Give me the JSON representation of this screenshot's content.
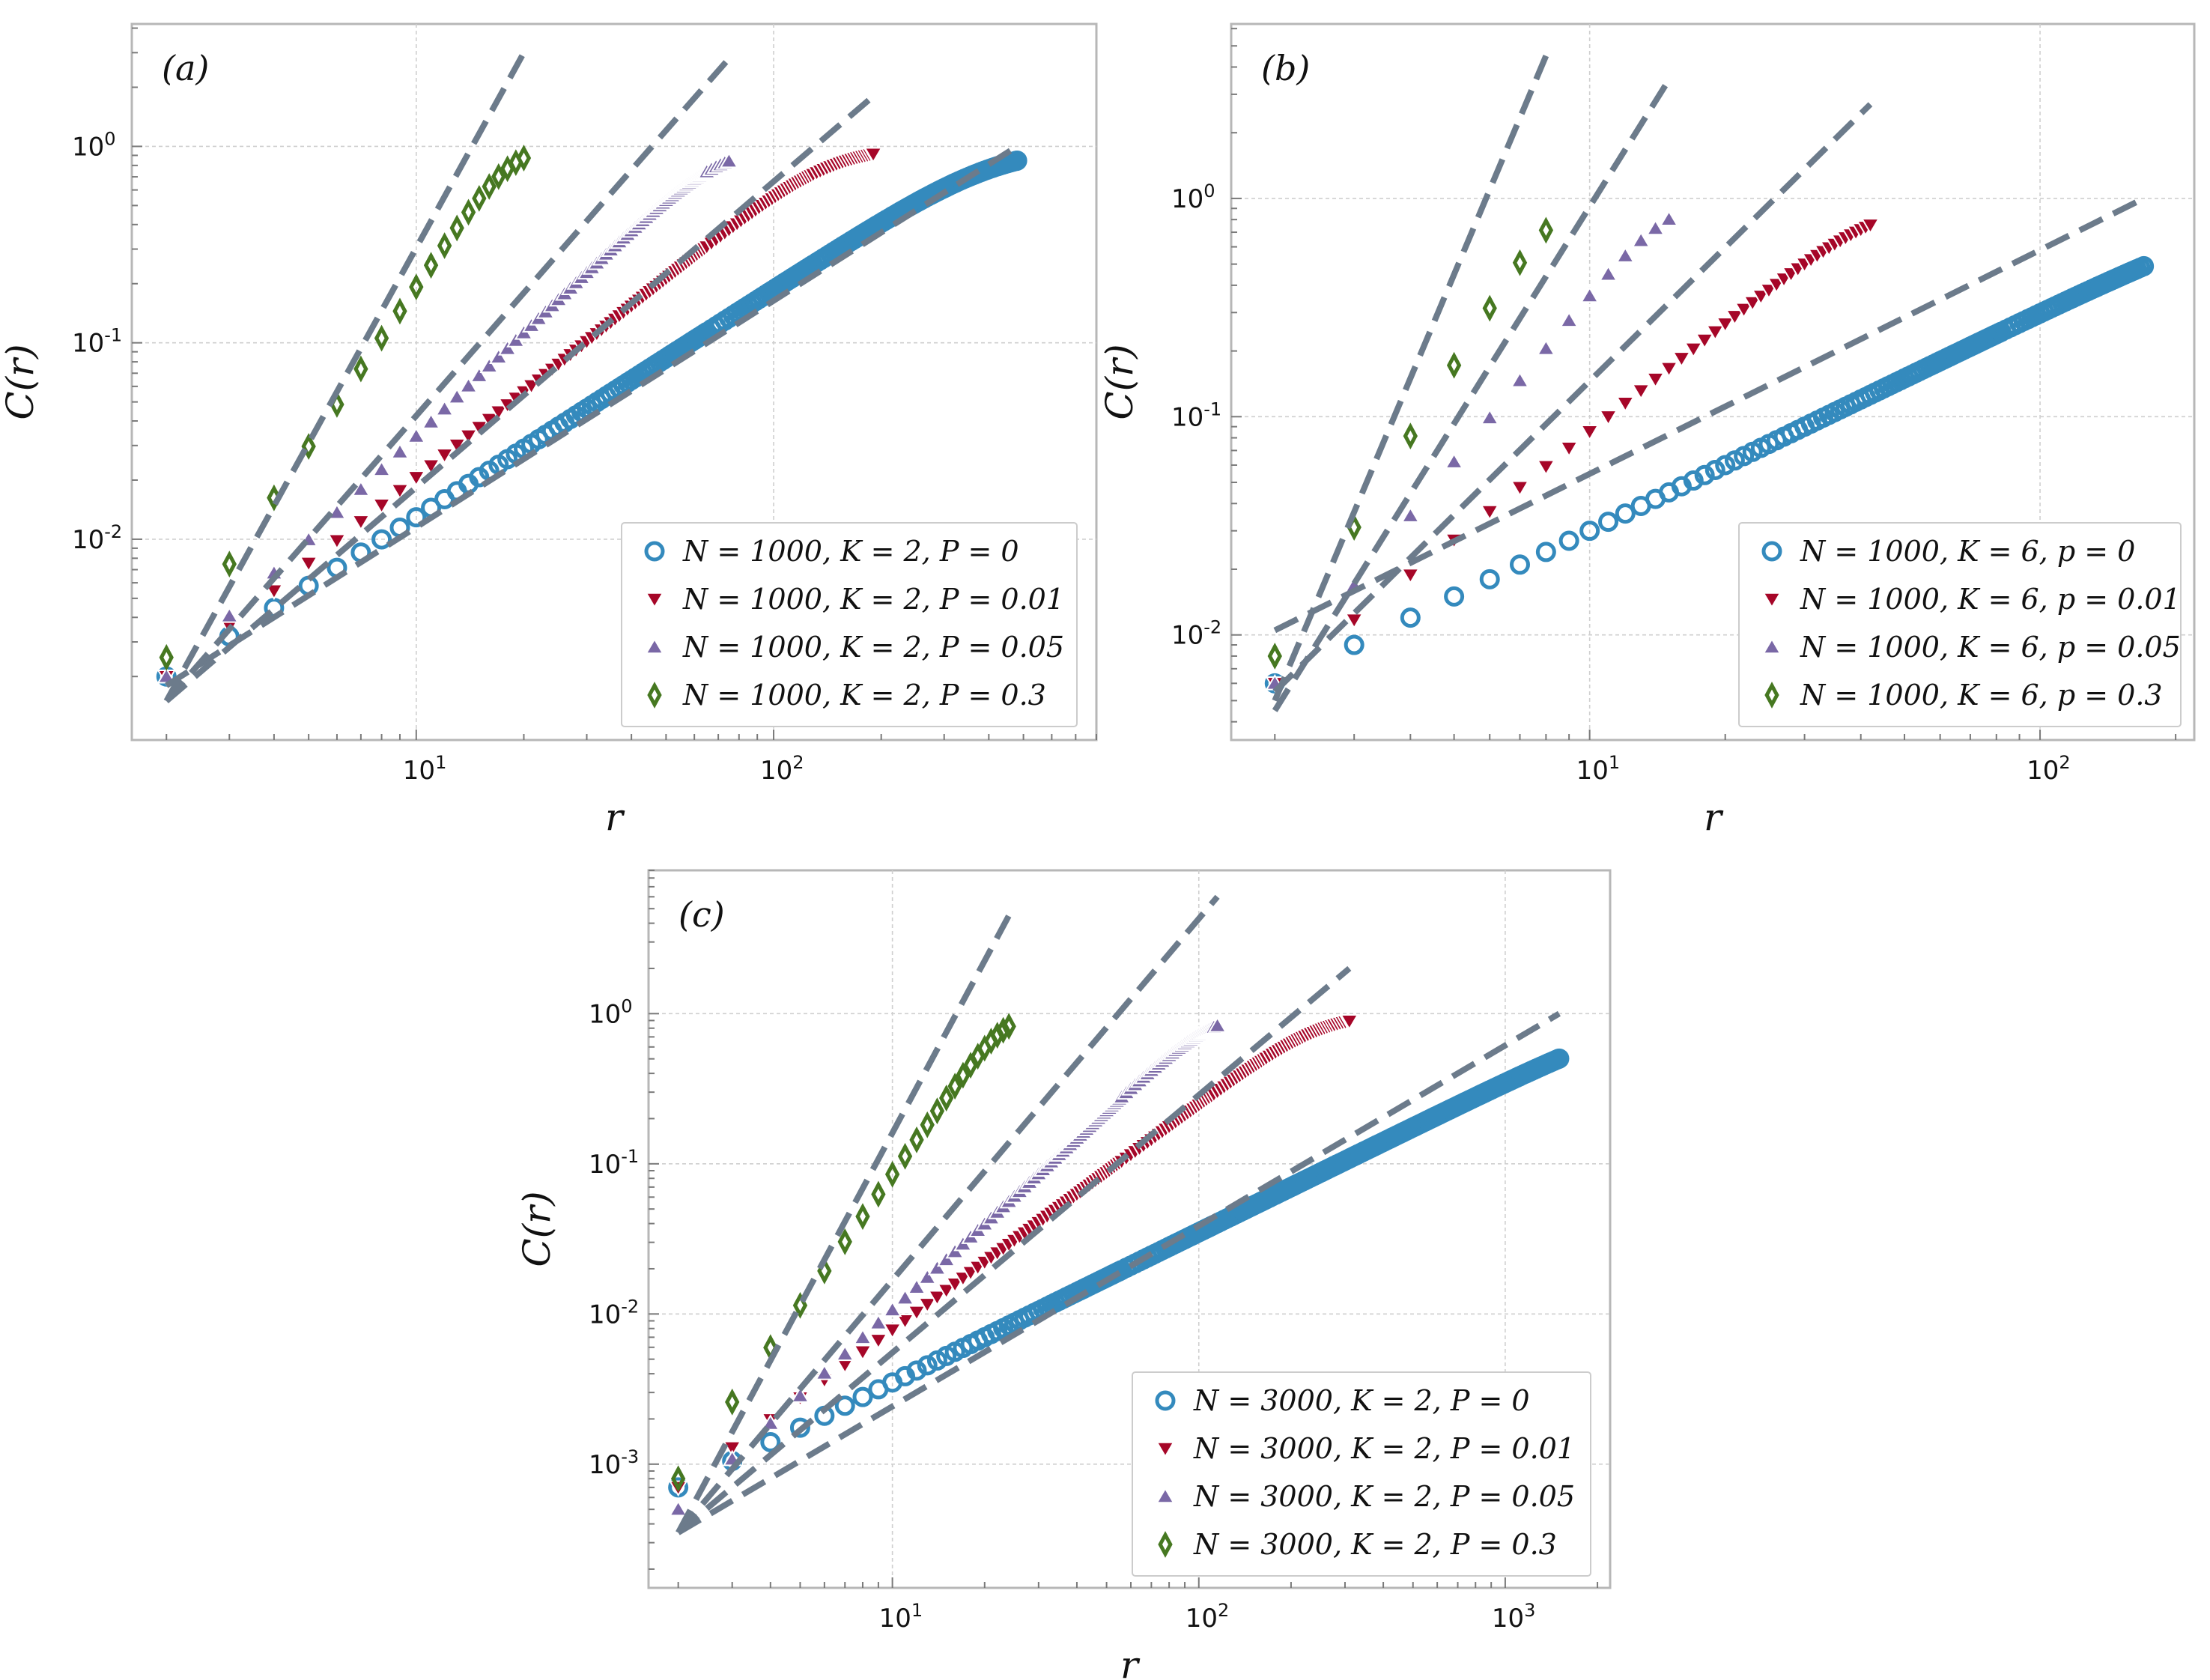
{
  "figure": {
    "panels": [
      {
        "id": "a",
        "label": "(a)"
      },
      {
        "id": "b",
        "label": "(b)"
      },
      {
        "id": "c",
        "label": "(c)"
      }
    ]
  },
  "chart_data": [
    {
      "type": "scatter",
      "panel": "(a)",
      "xlabel": "r",
      "ylabel": "C(r)",
      "xscale": "log",
      "yscale": "log",
      "xlim": [
        1.6,
        800
      ],
      "ylim": [
        0.00095,
        4.2
      ],
      "xticks": [
        {
          "base": "10",
          "exp": "1",
          "value": 10
        },
        {
          "base": "10",
          "exp": "2",
          "value": 100
        }
      ],
      "yticks": [
        {
          "base": "10",
          "exp": "-2",
          "value": 0.01
        },
        {
          "base": "10",
          "exp": "-1",
          "value": 0.1
        },
        {
          "base": "10",
          "exp": "0",
          "value": 1
        }
      ],
      "legend_position": "lower-right",
      "series": [
        {
          "name": "N = 1000, K = 2, P = 0",
          "marker": "circle",
          "color": "#348abd",
          "r_max": 480,
          "c_start": 0.002,
          "slope": 1.16,
          "fit": {
            "x": [
              2,
              480
            ],
            "y": [
              0.0018,
              1.0
            ]
          }
        },
        {
          "name": "N = 1000, K = 2, P = 0.01",
          "marker": "triangle-down",
          "color": "#a60628",
          "r_max": 190,
          "c_start": 0.002,
          "slope": 1.45,
          "fit": {
            "x": [
              2,
              190
            ],
            "y": [
              0.0015,
              1.8
            ]
          }
        },
        {
          "name": "N = 1000, K = 2, P = 0.05",
          "marker": "triangle-up",
          "color": "#7a68a6",
          "r_max": 75,
          "c_start": 0.002,
          "slope": 1.75,
          "fit": {
            "x": [
              2,
              75
            ],
            "y": [
              0.0015,
              2.8
            ]
          }
        },
        {
          "name": "N = 1000, K = 2, P = 0.3",
          "marker": "diamond",
          "color": "#467821",
          "r_max": 20,
          "c_start": 0.0025,
          "slope": 2.7,
          "fit": {
            "x": [
              2,
              20
            ],
            "y": [
              0.0015,
              3.0
            ]
          }
        }
      ]
    },
    {
      "type": "scatter",
      "panel": "(b)",
      "xlabel": "r",
      "ylabel": "C(r)",
      "xscale": "log",
      "yscale": "log",
      "xlim": [
        1.6,
        220
      ],
      "ylim": [
        0.0033,
        6.3
      ],
      "xticks": [
        {
          "base": "10",
          "exp": "1",
          "value": 10
        },
        {
          "base": "10",
          "exp": "2",
          "value": 100
        }
      ],
      "yticks": [
        {
          "base": "10",
          "exp": "-2",
          "value": 0.01
        },
        {
          "base": "10",
          "exp": "-1",
          "value": 0.1
        },
        {
          "base": "10",
          "exp": "0",
          "value": 1
        }
      ],
      "legend_position": "lower-right",
      "series": [
        {
          "name": "N = 1000, K = 6, p = 0",
          "marker": "circle",
          "color": "#348abd",
          "r_max": 170,
          "c_start": 0.006,
          "slope": 1.0,
          "fit": {
            "x": [
              2,
              170
            ],
            "y": [
              0.0105,
              1.0
            ]
          }
        },
        {
          "name": "N = 1000, K = 6, p = 0.01",
          "marker": "triangle-down",
          "color": "#a60628",
          "r_max": 42,
          "c_start": 0.006,
          "slope": 1.65,
          "fit": {
            "x": [
              2,
              42
            ],
            "y": [
              0.0055,
              2.7
            ]
          }
        },
        {
          "name": "N = 1000, K = 6, p = 0.05",
          "marker": "triangle-up",
          "color": "#7a68a6",
          "r_max": 15,
          "c_start": 0.006,
          "slope": 2.55,
          "fit": {
            "x": [
              2,
              15
            ],
            "y": [
              0.0045,
              3.5
            ]
          }
        },
        {
          "name": "N = 1000, K = 6, p = 0.3",
          "marker": "diamond",
          "color": "#467821",
          "r_max": 8,
          "c_start": 0.008,
          "slope": 3.35,
          "fit": {
            "x": [
              2,
              8
            ],
            "y": [
              0.005,
              4.5
            ]
          }
        }
      ]
    },
    {
      "type": "scatter",
      "panel": "(c)",
      "xlabel": "r",
      "ylabel": "C(r)",
      "xscale": "log",
      "yscale": "log",
      "xlim": [
        1.6,
        2200
      ],
      "ylim": [
        0.00015,
        9.0
      ],
      "xticks": [
        {
          "base": "10",
          "exp": "1",
          "value": 10
        },
        {
          "base": "10",
          "exp": "2",
          "value": 100
        },
        {
          "base": "10",
          "exp": "3",
          "value": 1000
        }
      ],
      "yticks": [
        {
          "base": "10",
          "exp": "-3",
          "value": 0.001
        },
        {
          "base": "10",
          "exp": "-2",
          "value": 0.01
        },
        {
          "base": "10",
          "exp": "-1",
          "value": 0.1
        },
        {
          "base": "10",
          "exp": "0",
          "value": 1
        }
      ],
      "legend_position": "lower-right",
      "series": [
        {
          "name": "N = 3000, K = 2, P = 0",
          "marker": "circle",
          "color": "#348abd",
          "r_max": 1500,
          "c_start": 0.0007,
          "slope": 1.0,
          "fit": {
            "x": [
              2,
              1500
            ],
            "y": [
              0.00035,
              1.0
            ]
          }
        },
        {
          "name": "N = 3000, K = 2, P = 0.01",
          "marker": "triangle-down",
          "color": "#a60628",
          "r_max": 310,
          "c_start": 0.0007,
          "slope": 1.5,
          "fit": {
            "x": [
              2,
              310
            ],
            "y": [
              0.00035,
              2.0
            ]
          }
        },
        {
          "name": "N = 3000, K = 2, P = 0.05",
          "marker": "triangle-up",
          "color": "#7a68a6",
          "r_max": 115,
          "c_start": 0.0005,
          "slope": 1.9,
          "fit": {
            "x": [
              2,
              115
            ],
            "y": [
              0.00035,
              6.0
            ]
          }
        },
        {
          "name": "N = 3000, K = 2, P = 0.3",
          "marker": "diamond",
          "color": "#467821",
          "r_max": 24,
          "c_start": 0.0008,
          "slope": 2.9,
          "fit": {
            "x": [
              2,
              24
            ],
            "y": [
              0.00035,
              4.5
            ]
          }
        }
      ]
    }
  ]
}
